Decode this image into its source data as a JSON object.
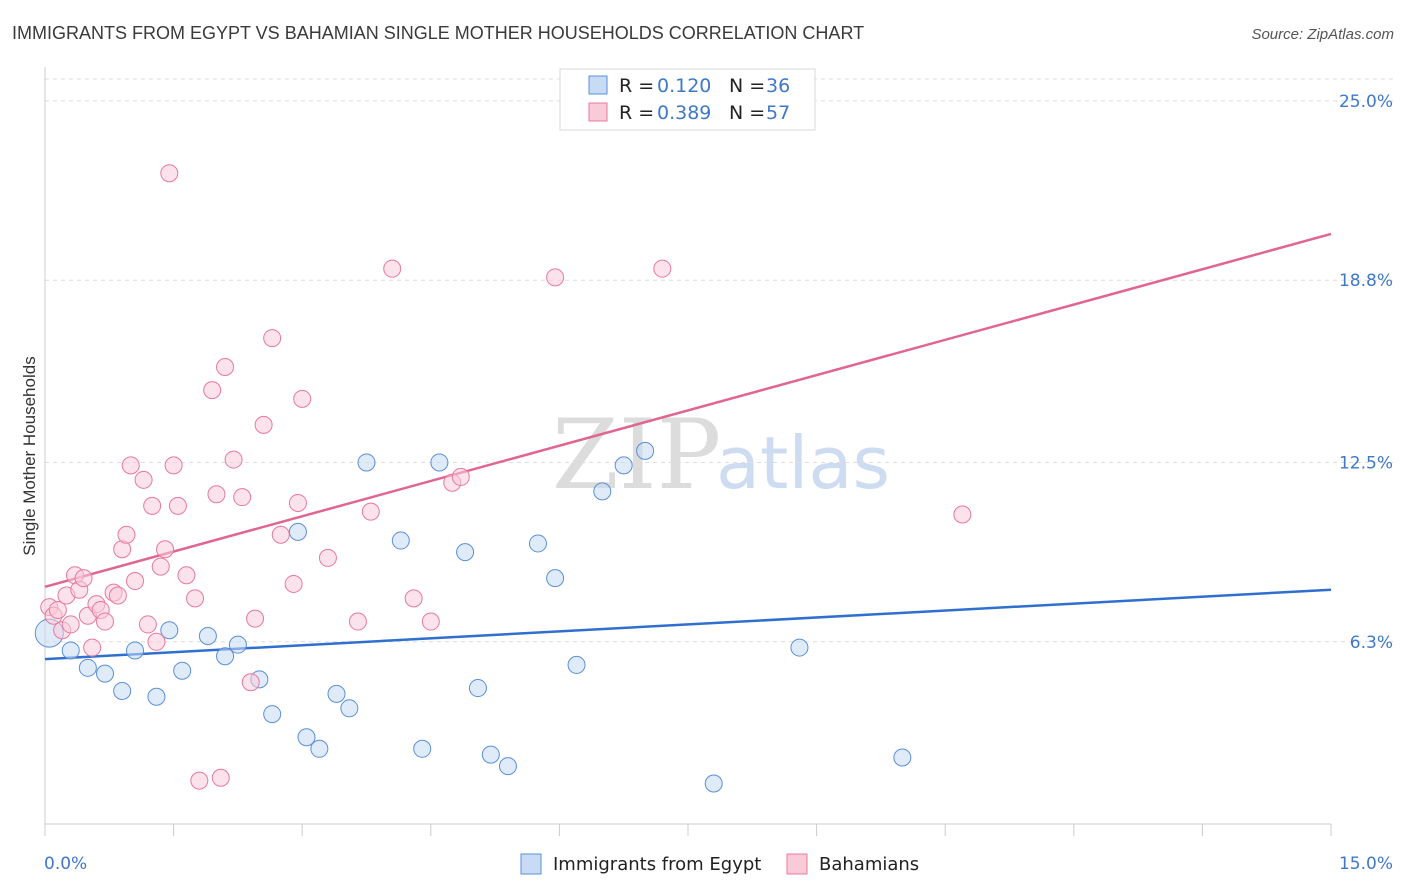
{
  "chart_data": {
    "type": "scatter",
    "title": "IMMIGRANTS FROM EGYPT VS BAHAMIAN SINGLE MOTHER HOUSEHOLDS CORRELATION CHART",
    "source": "Source: ZipAtlas.com",
    "xlabel": "",
    "ylabel": "Single Mother Households",
    "xlim": [
      0,
      15
    ],
    "ylim": [
      0,
      26
    ],
    "x_tick_labels": [
      "0.0%",
      "15.0%"
    ],
    "y_ticks": [
      {
        "value": 25.0,
        "label": "25.0%"
      },
      {
        "value": 18.8,
        "label": "18.8%"
      },
      {
        "value": 12.5,
        "label": "12.5%"
      },
      {
        "value": 6.3,
        "label": "6.3%"
      }
    ],
    "grid": "horizontal dashed",
    "legend_position": "top-center",
    "watermark": {
      "zip": "ZIP",
      "atlas": "atlas"
    },
    "stats_legend": [
      {
        "r_label": "R = ",
        "r_value": "0.120",
        "n_label": "N = ",
        "n_value": "36"
      },
      {
        "r_label": "R = ",
        "r_value": "0.389",
        "n_label": "N = ",
        "n_value": "57"
      }
    ],
    "series": [
      {
        "name": "Immigrants from Egypt",
        "color": "#5b8fd9",
        "fill": "#c7dbf5",
        "trend": {
          "x0": 0.0,
          "y0": 5.7,
          "x1": 15.0,
          "y1": 8.1
        },
        "points": [
          [
            0.05,
            6.6
          ],
          [
            0.3,
            6.0
          ],
          [
            0.5,
            5.4
          ],
          [
            0.7,
            5.2
          ],
          [
            0.9,
            4.6
          ],
          [
            1.05,
            6.0
          ],
          [
            1.3,
            4.4
          ],
          [
            1.45,
            6.7
          ],
          [
            1.6,
            5.3
          ],
          [
            1.9,
            6.5
          ],
          [
            2.1,
            5.8
          ],
          [
            2.25,
            6.2
          ],
          [
            2.5,
            5.0
          ],
          [
            2.65,
            3.8
          ],
          [
            2.95,
            10.1
          ],
          [
            3.05,
            3.0
          ],
          [
            3.2,
            2.6
          ],
          [
            3.4,
            4.5
          ],
          [
            3.55,
            4.0
          ],
          [
            3.75,
            12.5
          ],
          [
            4.15,
            9.8
          ],
          [
            4.4,
            2.6
          ],
          [
            4.6,
            12.5
          ],
          [
            4.9,
            9.4
          ],
          [
            5.05,
            4.7
          ],
          [
            5.2,
            2.4
          ],
          [
            5.4,
            2.0
          ],
          [
            5.75,
            9.7
          ],
          [
            5.95,
            8.5
          ],
          [
            6.2,
            5.5
          ],
          [
            6.5,
            11.5
          ],
          [
            6.75,
            12.4
          ],
          [
            7.0,
            12.9
          ],
          [
            7.8,
            1.4
          ],
          [
            8.8,
            6.1
          ],
          [
            10.0,
            2.3
          ]
        ]
      },
      {
        "name": "Bahamians",
        "color": "#e8799e",
        "fill": "#f9cad8",
        "trend": {
          "x0": 0.0,
          "y0": 8.2,
          "x1": 15.0,
          "y1": 20.4
        },
        "points": [
          [
            0.05,
            7.5
          ],
          [
            0.1,
            7.2
          ],
          [
            0.15,
            7.4
          ],
          [
            0.2,
            6.7
          ],
          [
            0.25,
            7.9
          ],
          [
            0.3,
            6.9
          ],
          [
            0.35,
            8.6
          ],
          [
            0.4,
            8.1
          ],
          [
            0.45,
            8.5
          ],
          [
            0.5,
            7.2
          ],
          [
            0.55,
            6.1
          ],
          [
            0.6,
            7.6
          ],
          [
            0.65,
            7.4
          ],
          [
            0.7,
            7.0
          ],
          [
            0.8,
            8.0
          ],
          [
            0.85,
            7.9
          ],
          [
            0.9,
            9.5
          ],
          [
            0.95,
            10.0
          ],
          [
            1.0,
            12.4
          ],
          [
            1.05,
            8.4
          ],
          [
            1.15,
            11.9
          ],
          [
            1.2,
            6.9
          ],
          [
            1.25,
            11.0
          ],
          [
            1.3,
            6.3
          ],
          [
            1.35,
            8.9
          ],
          [
            1.4,
            9.5
          ],
          [
            1.45,
            22.5
          ],
          [
            1.5,
            12.4
          ],
          [
            1.55,
            11.0
          ],
          [
            1.65,
            8.6
          ],
          [
            1.75,
            7.8
          ],
          [
            1.8,
            1.5
          ],
          [
            1.95,
            15.0
          ],
          [
            2.0,
            11.4
          ],
          [
            2.05,
            1.6
          ],
          [
            2.1,
            15.8
          ],
          [
            2.2,
            12.6
          ],
          [
            2.3,
            11.3
          ],
          [
            2.4,
            4.9
          ],
          [
            2.45,
            7.1
          ],
          [
            2.55,
            13.8
          ],
          [
            2.65,
            16.8
          ],
          [
            2.75,
            10.0
          ],
          [
            2.9,
            8.3
          ],
          [
            2.95,
            11.1
          ],
          [
            3.0,
            14.7
          ],
          [
            3.3,
            9.2
          ],
          [
            3.65,
            7.0
          ],
          [
            3.8,
            10.8
          ],
          [
            4.05,
            19.2
          ],
          [
            4.3,
            7.8
          ],
          [
            4.5,
            7.0
          ],
          [
            4.75,
            11.8
          ],
          [
            4.85,
            12.0
          ],
          [
            5.95,
            18.9
          ],
          [
            7.2,
            19.2
          ],
          [
            10.7,
            10.7
          ]
        ]
      }
    ]
  }
}
